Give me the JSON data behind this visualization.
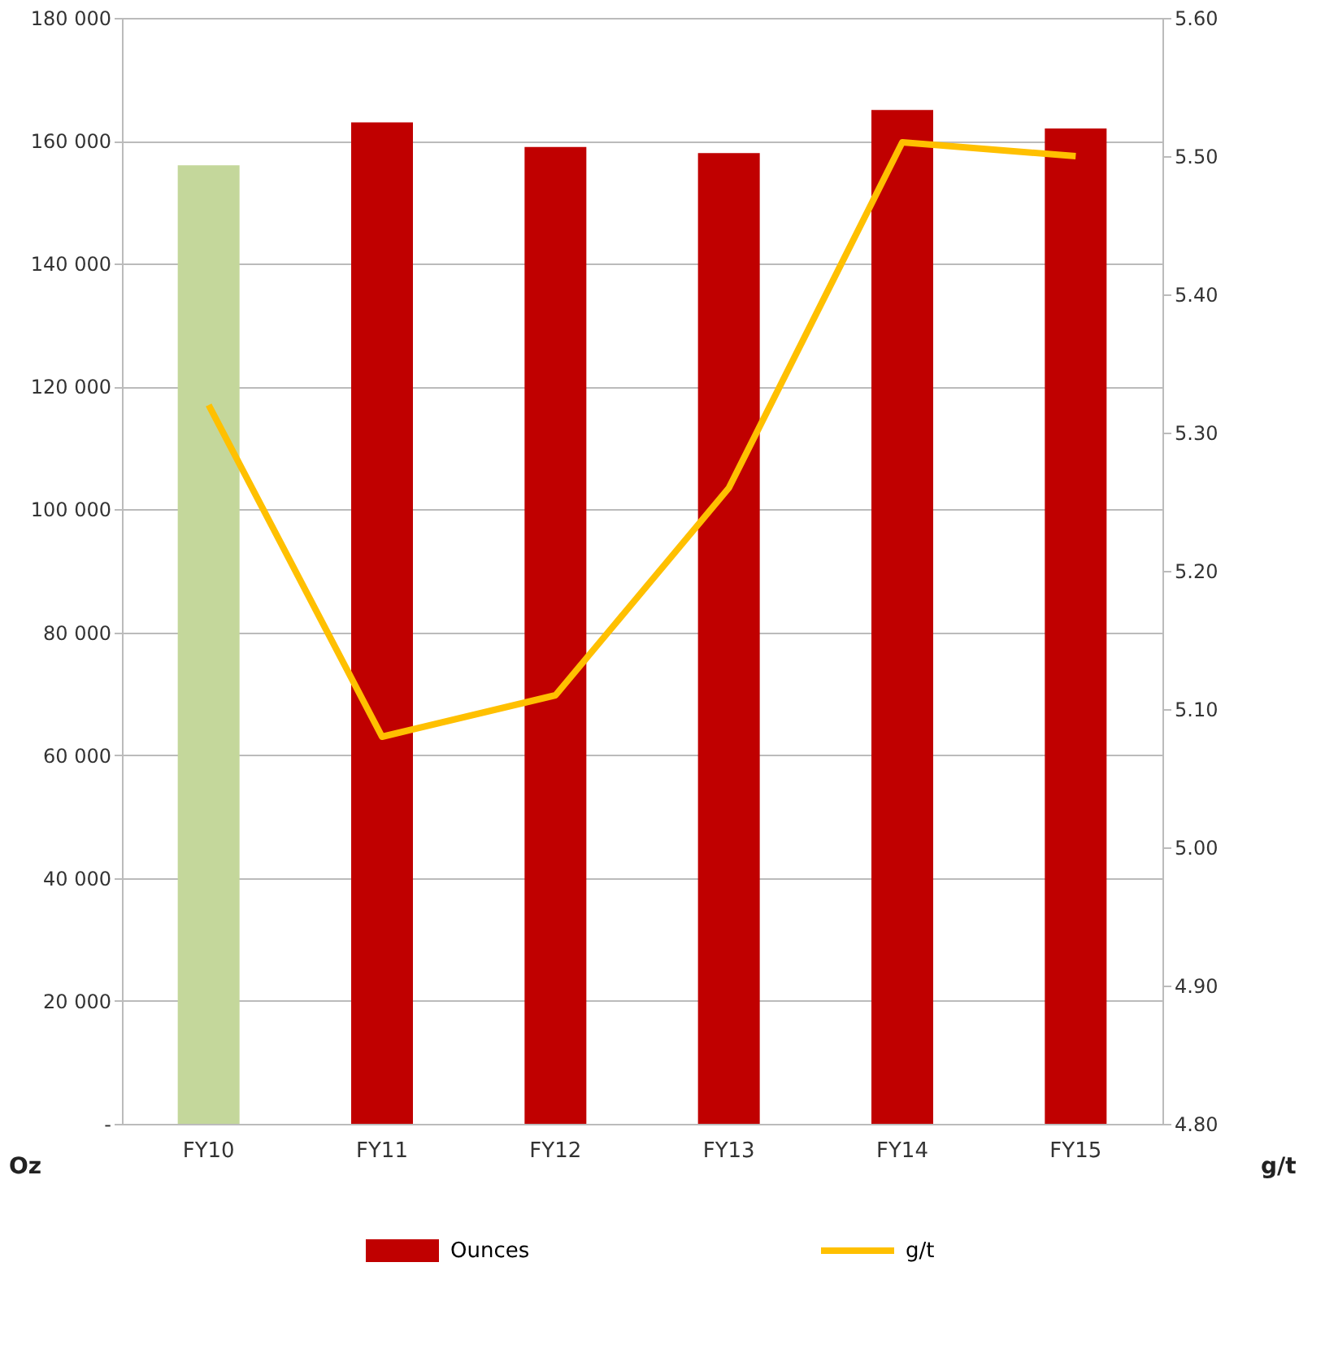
{
  "chart_data": {
    "type": "bar",
    "categories": [
      "FY10",
      "FY11",
      "FY12",
      "FY13",
      "FY14",
      "FY15"
    ],
    "series": [
      {
        "name": "Ounces",
        "color": "#c00000",
        "colors": [
          "#c4d79b",
          "#c00000",
          "#c00000",
          "#c00000",
          "#c00000",
          "#c00000"
        ],
        "values": [
          156000,
          163000,
          159000,
          158000,
          165000,
          162000
        ]
      },
      {
        "name": "g/t",
        "type": "line",
        "axis": "y2",
        "color": "#ffc000",
        "values": [
          5.32,
          5.08,
          5.11,
          5.26,
          5.51,
          5.5
        ]
      }
    ],
    "ylabel": "Oz",
    "y2label": "g/t",
    "ylim": [
      0,
      180000
    ],
    "yticks": [
      {
        "value": 0,
        "label": "-"
      },
      {
        "value": 20000,
        "label": "20 000"
      },
      {
        "value": 40000,
        "label": "40 000"
      },
      {
        "value": 60000,
        "label": "60 000"
      },
      {
        "value": 80000,
        "label": "80 000"
      },
      {
        "value": 100000,
        "label": "100 000"
      },
      {
        "value": 120000,
        "label": "120 000"
      },
      {
        "value": 140000,
        "label": "140 000"
      },
      {
        "value": 160000,
        "label": "160 000"
      },
      {
        "value": 180000,
        "label": "180 000"
      }
    ],
    "y2lim": [
      4.8,
      5.6
    ],
    "y2ticks": [
      {
        "value": 4.8,
        "label": "4.80"
      },
      {
        "value": 4.9,
        "label": "4.90"
      },
      {
        "value": 5.0,
        "label": "5.00"
      },
      {
        "value": 5.1,
        "label": "5.10"
      },
      {
        "value": 5.2,
        "label": "5.20"
      },
      {
        "value": 5.3,
        "label": "5.30"
      },
      {
        "value": 5.4,
        "label": "5.40"
      },
      {
        "value": 5.5,
        "label": "5.50"
      },
      {
        "value": 5.6,
        "label": "5.60"
      }
    ],
    "grid": "y",
    "legend": "bottom",
    "line_style": "solid",
    "marker": "none"
  }
}
